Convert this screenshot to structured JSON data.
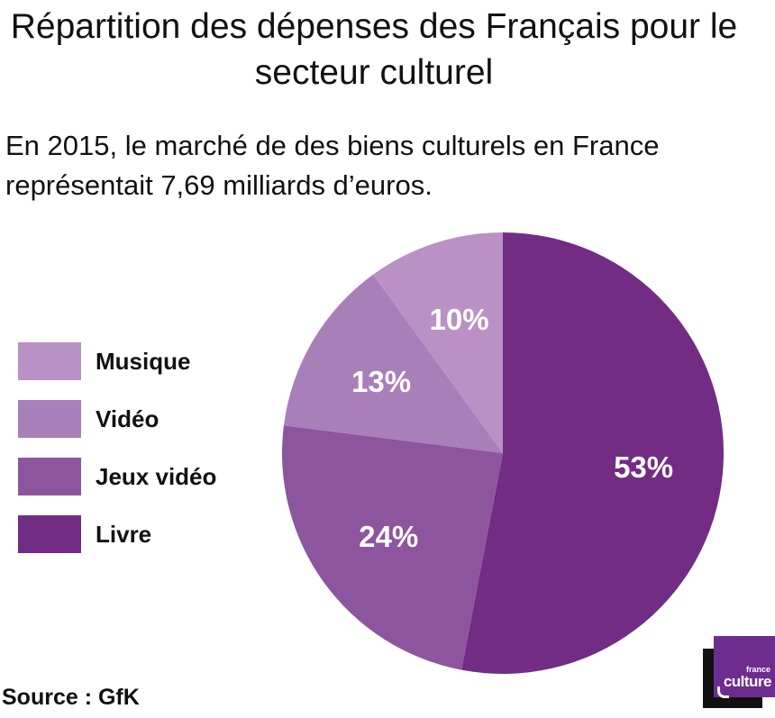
{
  "chart_data": {
    "type": "pie",
    "title": "Répartition des dépenses des Français pour le secteur culturel",
    "subtitle": "En 2015, le marché de des biens culturels en France représentait 7,69 milliards d’euros.",
    "categories": [
      "Livre",
      "Jeux vidéo",
      "Vidéo",
      "Musique"
    ],
    "values": [
      53,
      24,
      13,
      10
    ],
    "labels": [
      "53%",
      "24%",
      "13%",
      "10%"
    ],
    "colors": [
      "#722c84",
      "#8d559e",
      "#a97fb9",
      "#b991c4"
    ],
    "legend_position": "left",
    "legend_order": [
      "Musique",
      "Vidéo",
      "Jeux vidéo",
      "Livre"
    ]
  },
  "legend": [
    {
      "label": "Musique",
      "color": "#b991c4"
    },
    {
      "label": "Vidéo",
      "color": "#a97fb9"
    },
    {
      "label": "Jeux vidéo",
      "color": "#8d559e"
    },
    {
      "label": "Livre",
      "color": "#722c84"
    }
  ],
  "source": "Source : GfK",
  "logo": {
    "small": "france",
    "big": "culture",
    "color": "#6f2c8f"
  }
}
